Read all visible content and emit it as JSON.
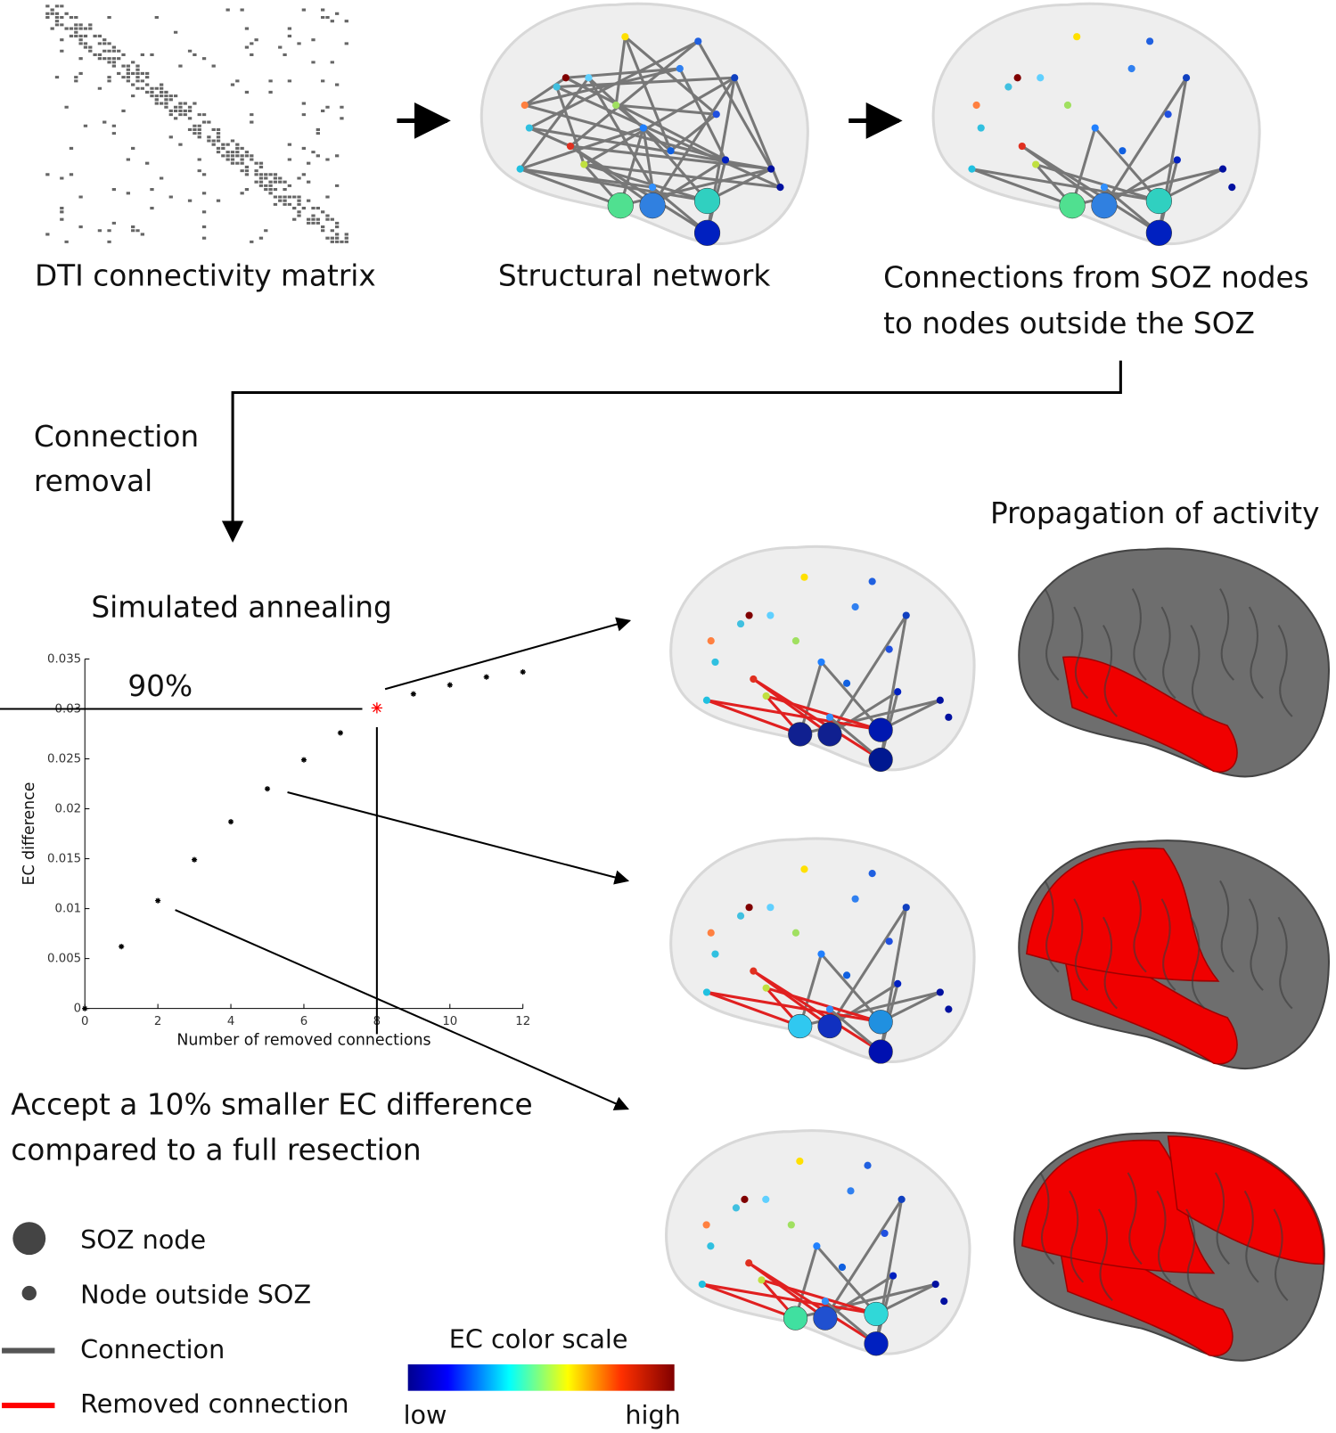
{
  "labels": {
    "matrix": "DTI connectivity matrix",
    "network": "Structural network",
    "soz_connections": [
      "Connections from SOZ nodes",
      "to nodes outside the SOZ"
    ],
    "removal": [
      "Connection",
      "removal"
    ],
    "propagation": "Propagation of activity",
    "annealing": "Simulated annealing",
    "accept": [
      "Accept a 10% smaller EC difference",
      "compared to a full resection"
    ],
    "legend": [
      "SOZ node",
      "Node outside SOZ",
      "Connection",
      "Removed connection"
    ],
    "color_scale": {
      "title": "EC color scale",
      "low": "low",
      "high": "high"
    }
  },
  "chart_data": {
    "type": "scatter",
    "x": [
      0,
      1,
      2,
      3,
      4,
      5,
      6,
      7,
      8,
      9,
      10,
      11,
      12
    ],
    "values": [
      0,
      0.0062,
      0.0108,
      0.0149,
      0.0187,
      0.022,
      0.0249,
      0.0276,
      0.0301,
      0.0315,
      0.0324,
      0.0332,
      0.0337
    ],
    "colors": [
      "#000000",
      "#000000",
      "#000000",
      "#000000",
      "#000000",
      "#000000",
      "#000000",
      "#000000",
      "#ff0000",
      "#000000",
      "#000000",
      "#000000",
      "#000000"
    ],
    "xlabel": "Number of removed connections",
    "ylabel": "EC difference",
    "xlim": [
      0,
      12
    ],
    "ylim": [
      0,
      0.035
    ],
    "xticks": [
      0,
      2,
      4,
      6,
      8,
      10,
      12
    ],
    "yticks": [
      0,
      0.005,
      0.01,
      0.015,
      0.02,
      0.025,
      0.03,
      0.035
    ],
    "reference_lines": {
      "y": 0.03,
      "x": 8
    },
    "annotation": "90%"
  }
}
